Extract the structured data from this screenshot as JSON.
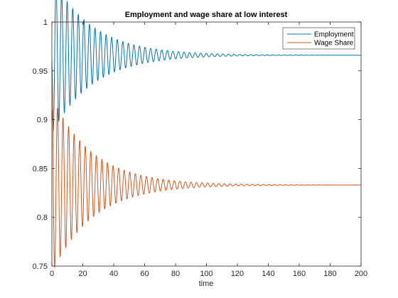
{
  "chart_data": {
    "type": "line",
    "title": "Employment and wage share at low interest",
    "xlabel": "time",
    "ylabel": "",
    "xlim": [
      0,
      200
    ],
    "ylim": [
      0.75,
      1.0
    ],
    "x_ticks": [
      0,
      20,
      40,
      60,
      80,
      100,
      120,
      140,
      160,
      180,
      200
    ],
    "y_ticks": [
      0.75,
      0.8,
      0.85,
      0.9,
      0.95,
      1
    ],
    "y_tick_labels": [
      "0.75",
      "0.8",
      "0.85",
      "0.9",
      "0.95",
      "1"
    ],
    "grid": false,
    "legend_position": "top-right",
    "series": [
      {
        "name": "Employment",
        "color": "#0072BD",
        "start": 0.9,
        "equilibrium": 0.966,
        "initial_amplitude": 0.08,
        "decay_per_unit_time": 0.038,
        "period": 3.6,
        "phase": 0
      },
      {
        "name": "Wage Share",
        "color": "#D95319",
        "start": 0.96,
        "equilibrium": 0.833,
        "initial_amplitude": 0.09,
        "decay_per_unit_time": 0.038,
        "period": 3.6,
        "phase": 1.57
      }
    ]
  }
}
